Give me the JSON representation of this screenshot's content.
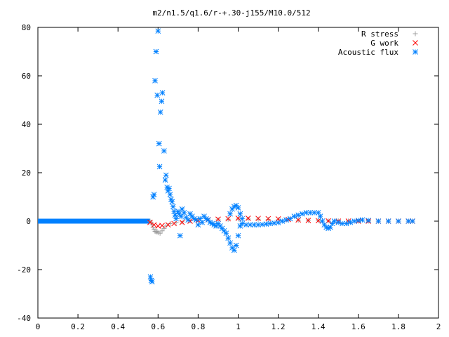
{
  "chart_data": {
    "type": "scatter",
    "title": "m2/n1.5/q1.6/r-+.30-j155/M10.0/512",
    "xlabel": "",
    "ylabel": "",
    "xlim": [
      0,
      2
    ],
    "ylim": [
      -40,
      80
    ],
    "xticks": [
      0,
      0.2,
      0.4,
      0.6,
      0.8,
      1,
      1.2,
      1.4,
      1.6,
      1.8,
      2
    ],
    "xtick_labels": [
      "0",
      "0.2",
      "0.4",
      "0.6",
      "0.8",
      "1",
      "1.2",
      "1.4",
      "1.6",
      "1.8",
      "2"
    ],
    "yticks": [
      -40,
      -20,
      0,
      20,
      40,
      60,
      80
    ],
    "ytick_labels": [
      "-40",
      "-20",
      "0",
      "20",
      "40",
      "60",
      "80"
    ],
    "grid": false,
    "legend_position": "top-right",
    "series": [
      {
        "name": "R stress",
        "marker": "plus",
        "color": "#a0a0a0",
        "points": [
          [
            0.56,
            0
          ],
          [
            0.565,
            -0.5
          ],
          [
            0.57,
            -1.5
          ],
          [
            0.575,
            -2.5
          ],
          [
            0.58,
            -3.5
          ],
          [
            0.585,
            -4.2
          ],
          [
            0.59,
            -4.5
          ],
          [
            0.595,
            -4.2
          ],
          [
            0.6,
            -4.8
          ],
          [
            0.61,
            -5
          ],
          [
            0.62,
            -4
          ],
          [
            0.63,
            -3
          ],
          [
            0.64,
            -2
          ],
          [
            0.66,
            -1
          ],
          [
            0.69,
            -0.5
          ],
          [
            0.72,
            -0.3
          ],
          [
            0.76,
            0.2
          ],
          [
            0.8,
            0.3
          ],
          [
            0.85,
            0.5
          ],
          [
            0.9,
            0.6
          ],
          [
            0.95,
            0.8
          ],
          [
            1.0,
            0.9
          ],
          [
            1.05,
            0.9
          ],
          [
            1.1,
            0.8
          ],
          [
            1.15,
            0.7
          ],
          [
            1.2,
            0.6
          ],
          [
            1.25,
            0.5
          ],
          [
            1.3,
            0.4
          ],
          [
            1.35,
            0.3
          ],
          [
            1.4,
            0.2
          ],
          [
            1.45,
            0.1
          ],
          [
            1.5,
            0.1
          ],
          [
            1.55,
            0.05
          ],
          [
            1.6,
            0
          ],
          [
            1.65,
            0
          ],
          [
            1.7,
            0
          ],
          [
            1.75,
            0
          ],
          [
            1.8,
            0
          ],
          [
            1.85,
            0
          ],
          [
            1.87,
            0
          ]
        ]
      },
      {
        "name": "G work",
        "marker": "cross",
        "color": "#ff0000",
        "points": [
          [
            0.56,
            -0.5
          ],
          [
            0.58,
            -1.5
          ],
          [
            0.6,
            -2
          ],
          [
            0.62,
            -1.8
          ],
          [
            0.65,
            -1.5
          ],
          [
            0.68,
            -1
          ],
          [
            0.72,
            -0.5
          ],
          [
            0.76,
            0
          ],
          [
            0.8,
            0.3
          ],
          [
            0.85,
            0.6
          ],
          [
            0.9,
            0.8
          ],
          [
            0.95,
            1
          ],
          [
            1.0,
            1.2
          ],
          [
            1.05,
            1.2
          ],
          [
            1.1,
            1.1
          ],
          [
            1.15,
            1
          ],
          [
            1.2,
            0.9
          ],
          [
            1.25,
            0.7
          ],
          [
            1.3,
            0.5
          ],
          [
            1.35,
            0.3
          ],
          [
            1.4,
            0.2
          ],
          [
            1.45,
            0.1
          ],
          [
            1.5,
            0
          ],
          [
            1.55,
            0
          ],
          [
            1.6,
            0
          ],
          [
            1.65,
            0
          ],
          [
            1.7,
            0
          ],
          [
            1.75,
            0
          ],
          [
            1.8,
            0
          ],
          [
            1.85,
            0
          ],
          [
            1.87,
            0
          ]
        ]
      },
      {
        "name": "Acoustic flux",
        "marker": "star",
        "color": "#0080ff",
        "points": [
          [
            0.562,
            -23
          ],
          [
            0.566,
            -24.5
          ],
          [
            0.57,
            -25
          ],
          [
            0.575,
            10
          ],
          [
            0.58,
            11
          ],
          [
            0.585,
            58
          ],
          [
            0.59,
            70
          ],
          [
            0.596,
            52
          ],
          [
            0.6,
            78.5
          ],
          [
            0.605,
            32
          ],
          [
            0.608,
            22.5
          ],
          [
            0.612,
            45
          ],
          [
            0.618,
            49.5
          ],
          [
            0.622,
            53
          ],
          [
            0.63,
            29
          ],
          [
            0.636,
            17
          ],
          [
            0.64,
            19
          ],
          [
            0.645,
            14
          ],
          [
            0.65,
            12.5
          ],
          [
            0.655,
            13.5
          ],
          [
            0.66,
            11
          ],
          [
            0.665,
            9
          ],
          [
            0.67,
            8
          ],
          [
            0.675,
            6
          ],
          [
            0.68,
            4
          ],
          [
            0.685,
            2.5
          ],
          [
            0.69,
            1
          ],
          [
            0.7,
            4
          ],
          [
            0.705,
            3
          ],
          [
            0.71,
            -6
          ],
          [
            0.715,
            2
          ],
          [
            0.72,
            5
          ],
          [
            0.73,
            3.5
          ],
          [
            0.74,
            1.5
          ],
          [
            0.75,
            0.5
          ],
          [
            0.76,
            3
          ],
          [
            0.77,
            2
          ],
          [
            0.78,
            1
          ],
          [
            0.79,
            0.5
          ],
          [
            0.8,
            -1.5
          ],
          [
            0.81,
            1
          ],
          [
            0.82,
            -0.5
          ],
          [
            0.83,
            2
          ],
          [
            0.84,
            1
          ],
          [
            0.85,
            0.5
          ],
          [
            0.86,
            -0.5
          ],
          [
            0.87,
            -1
          ],
          [
            0.88,
            -1.5
          ],
          [
            0.89,
            -2
          ],
          [
            0.9,
            -1
          ],
          [
            0.91,
            -2
          ],
          [
            0.92,
            -3
          ],
          [
            0.93,
            -4
          ],
          [
            0.94,
            -5
          ],
          [
            0.95,
            -7
          ],
          [
            0.96,
            -9
          ],
          [
            0.97,
            -11
          ],
          [
            0.98,
            -12
          ],
          [
            0.99,
            -10
          ],
          [
            1.0,
            -6
          ],
          [
            1.01,
            -2
          ],
          [
            1.02,
            -1
          ],
          [
            0.96,
            3
          ],
          [
            0.97,
            5
          ],
          [
            0.98,
            6
          ],
          [
            0.99,
            6.5
          ],
          [
            1.0,
            5.5
          ],
          [
            1.01,
            3
          ],
          [
            1.02,
            1
          ],
          [
            1.04,
            -1.5
          ],
          [
            1.06,
            -1.5
          ],
          [
            1.08,
            -1.5
          ],
          [
            1.1,
            -1.5
          ],
          [
            1.12,
            -1.4
          ],
          [
            1.14,
            -1.2
          ],
          [
            1.16,
            -1
          ],
          [
            1.18,
            -0.8
          ],
          [
            1.2,
            -0.6
          ],
          [
            1.22,
            0
          ],
          [
            1.24,
            0.5
          ],
          [
            1.26,
            1
          ],
          [
            1.28,
            2
          ],
          [
            1.3,
            2.5
          ],
          [
            1.32,
            3
          ],
          [
            1.34,
            3.5
          ],
          [
            1.36,
            3.5
          ],
          [
            1.38,
            3.5
          ],
          [
            1.4,
            3.5
          ],
          [
            1.41,
            2
          ],
          [
            1.42,
            0
          ],
          [
            1.43,
            -1.5
          ],
          [
            1.44,
            -2.5
          ],
          [
            1.45,
            -3
          ],
          [
            1.46,
            -2.5
          ],
          [
            1.47,
            -1
          ],
          [
            1.48,
            0
          ],
          [
            1.5,
            -0.5
          ],
          [
            1.52,
            -1
          ],
          [
            1.54,
            -1
          ],
          [
            1.56,
            -0.5
          ],
          [
            1.58,
            0
          ],
          [
            1.6,
            0.3
          ],
          [
            1.62,
            0.5
          ],
          [
            1.65,
            0.3
          ],
          [
            1.7,
            0
          ],
          [
            1.75,
            0
          ],
          [
            1.8,
            0
          ],
          [
            1.85,
            0
          ],
          [
            1.87,
            0
          ]
        ]
      }
    ],
    "baseline": {
      "x_from": 0,
      "x_to": 0.56,
      "y": 0
    }
  }
}
